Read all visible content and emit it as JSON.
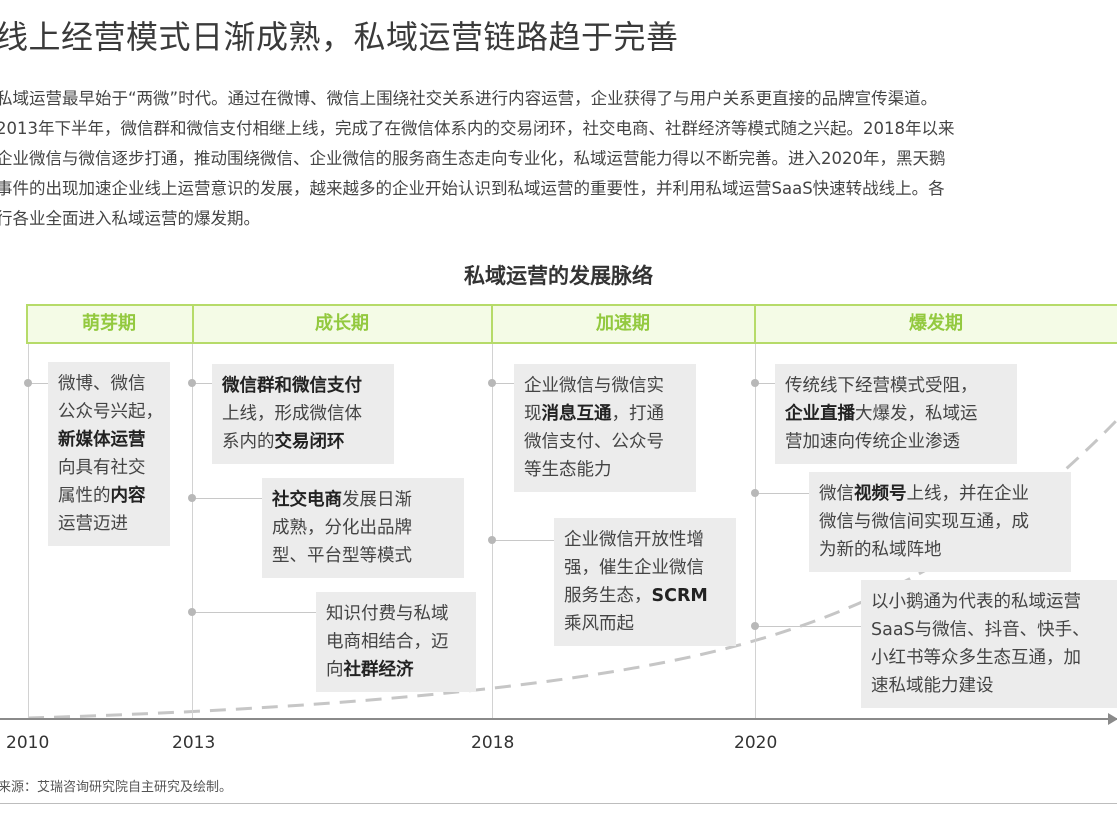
{
  "title": "线上经营模式日渐成熟，私域运营链路趋于完善",
  "paragraph_lines": [
    "私域运营最早始于“两微”时代。通过在微博、微信上围绕社交关系进行内容运营，企业获得了与用户关系更直接的品牌宣传渠道。",
    "2013年下半年，微信群和微信支付相继上线，完成了在微信体系内的交易闭环，社交电商、社群经济等模式随之兴起。2018年以来",
    "企业微信与微信逐步打通，推动围绕微信、企业微信的服务商生态走向专业化，私域运营能力得以不断完善。进入2020年，黑天鹅",
    "事件的出现加速企业线上运营意识的发展，越来越多的企业开始认识到私域运营的重要性，并利用私域运营SaaS快速转战线上。各",
    "行各业全面进入私域运营的爆发期。"
  ],
  "diagram_title": "私域运营的发展脉络",
  "phases": [
    "萌芽期",
    "成长期",
    "加速期",
    "爆发期"
  ],
  "years": [
    "2010",
    "2013",
    "2018",
    "2020"
  ],
  "boxes": [
    {
      "id": "b1",
      "lines": [
        [
          "微博、微信"
        ],
        [
          "公众号兴起，"
        ],
        [
          {
            "b": "新媒体运营"
          }
        ],
        [
          "向具有社交"
        ],
        [
          "属性的",
          {
            "b": "内容"
          }
        ],
        [
          "运营迈进"
        ]
      ]
    },
    {
      "id": "b2",
      "lines": [
        [
          {
            "b": "微信群和微信支付"
          }
        ],
        [
          "上线，形成微信体"
        ],
        [
          "系内的",
          {
            "b": "交易闭环"
          }
        ]
      ]
    },
    {
      "id": "b3",
      "lines": [
        [
          {
            "b": "社交电商"
          },
          "发展日渐"
        ],
        [
          "成熟，分化出品牌"
        ],
        [
          "型、平台型等模式"
        ]
      ]
    },
    {
      "id": "b4",
      "lines": [
        [
          "知识付费与私域"
        ],
        [
          "电商相结合，迈"
        ],
        [
          "向",
          {
            "b": "社群经济"
          }
        ]
      ]
    },
    {
      "id": "b5",
      "lines": [
        [
          "企业微信与微信实"
        ],
        [
          "现",
          {
            "b": "消息互通"
          },
          "，打通"
        ],
        [
          "微信支付、公众号"
        ],
        [
          "等生态能力"
        ]
      ]
    },
    {
      "id": "b6",
      "lines": [
        [
          "企业微信开放性增"
        ],
        [
          "强，催生企业微信"
        ],
        [
          "服务生态，",
          {
            "b": "SCRM"
          }
        ],
        [
          "乘风而起"
        ]
      ]
    },
    {
      "id": "b7",
      "lines": [
        [
          "传统线下经营模式受阻，"
        ],
        [
          {
            "b": "企业直播"
          },
          "大爆发，私域运"
        ],
        [
          "营加速向传统企业渗透"
        ]
      ]
    },
    {
      "id": "b8",
      "lines": [
        [
          "微信",
          {
            "b": "视频号"
          },
          "上线，并在企业"
        ],
        [
          "微信与微信间实现互通，成"
        ],
        [
          "为新的私域阵地"
        ]
      ]
    },
    {
      "id": "b9",
      "lines": [
        [
          "以小鹅通为代表的私域运营"
        ],
        [
          "SaaS与微信、抖音、快手、"
        ],
        [
          "小红书等众多生态互通，加"
        ],
        [
          "速私域能力建设"
        ]
      ]
    }
  ],
  "source": "来源：艾瑞咨询研究院自主研究及绘制。",
  "colors": {
    "phase_green": "#93c93f",
    "phase_border": "#b6db69",
    "phase_bg": "#f4fbe6",
    "box_bg": "#ececec",
    "curve": "#c6c6c6"
  }
}
